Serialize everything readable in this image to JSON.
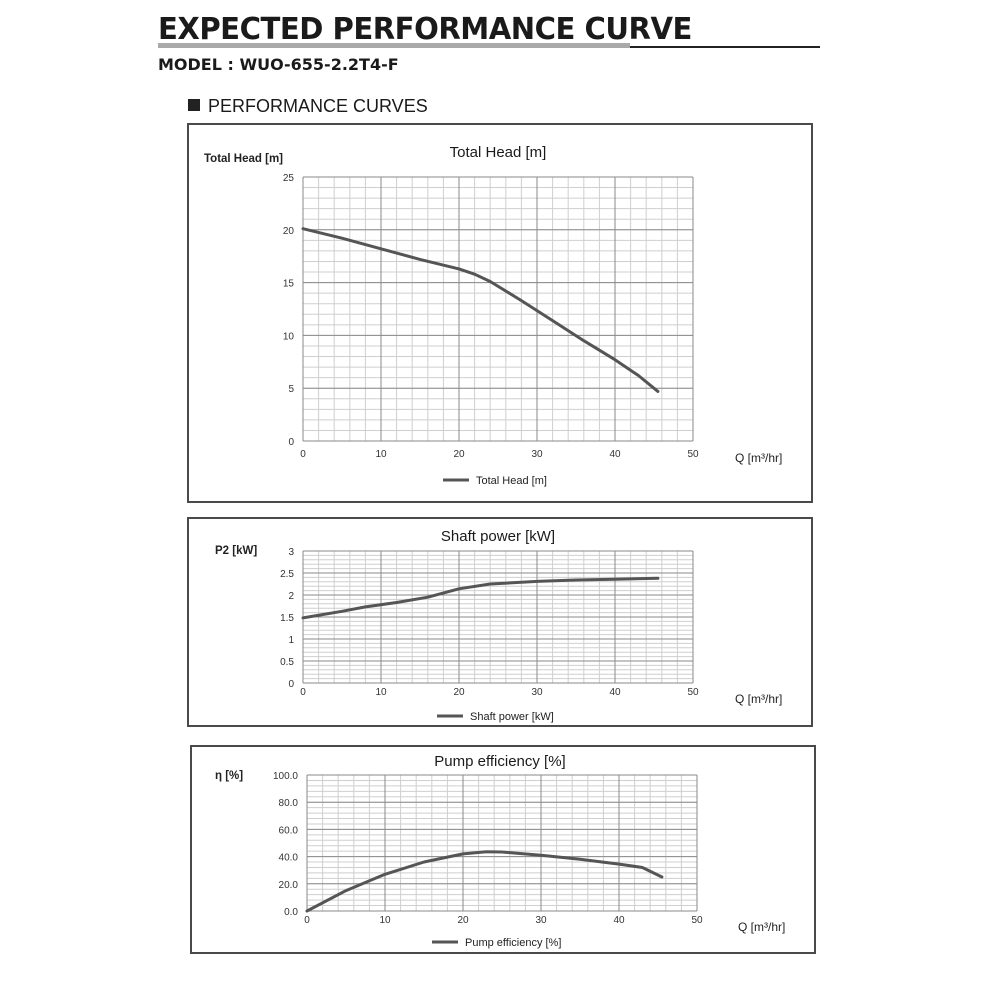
{
  "header": {
    "title": "EXPECTED PERFORMANCE CURVE",
    "model": "MODEL : WUO-655-2.2T4-F",
    "section": "PERFORMANCE CURVES"
  },
  "colors": {
    "line": "#555555",
    "grid_major": "#8a8a8a",
    "grid_minor": "#cfcfcf",
    "border": "#4a4a4a"
  },
  "chart_data": [
    {
      "type": "line",
      "title": "Total Head [m]",
      "ylabel": "Total Head [m]",
      "xlabel": "Q [m³/hr]",
      "legend": "Total Head [m]",
      "legend_placement": "bottom",
      "grid": true,
      "xlim": [
        0,
        50
      ],
      "ylim": [
        0,
        25
      ],
      "xticks": [
        "0",
        "10",
        "20",
        "30",
        "40",
        "50"
      ],
      "yticks": [
        "0",
        "5",
        "10",
        "15",
        "20",
        "25"
      ],
      "x_minor": 2,
      "y_minor": 1,
      "series": [
        {
          "name": "Total Head [m]",
          "x": [
            0,
            5,
            10,
            15,
            20,
            22,
            24,
            28,
            32,
            36,
            40,
            43,
            45.5
          ],
          "y": [
            20.1,
            19.2,
            18.2,
            17.2,
            16.3,
            15.8,
            15.1,
            13.3,
            11.4,
            9.5,
            7.7,
            6.2,
            4.7
          ]
        }
      ]
    },
    {
      "type": "line",
      "title": "Shaft power [kW]",
      "ylabel": "P2 [kW]",
      "xlabel": "Q [m³/hr]",
      "legend": "Shaft power [kW]",
      "legend_placement": "bottom",
      "grid": true,
      "xlim": [
        0,
        50
      ],
      "ylim": [
        0,
        3
      ],
      "xticks": [
        "0",
        "10",
        "20",
        "30",
        "40",
        "50"
      ],
      "yticks": [
        "0",
        "0.5",
        "1",
        "1.5",
        "2",
        "2.5",
        "3"
      ],
      "x_minor": 2,
      "y_minor": 0.1,
      "series": [
        {
          "name": "Shaft power [kW]",
          "x": [
            0,
            5,
            8,
            12,
            16,
            20,
            24,
            30,
            35,
            40,
            45.5
          ],
          "y": [
            1.48,
            1.63,
            1.73,
            1.83,
            1.95,
            2.14,
            2.25,
            2.31,
            2.34,
            2.36,
            2.38
          ]
        }
      ]
    },
    {
      "type": "line",
      "title": "Pump efficiency [%]",
      "ylabel": "η [%]",
      "xlabel": "Q [m³/hr]",
      "legend": "Pump efficiency [%]",
      "legend_placement": "bottom",
      "grid": true,
      "xlim": [
        0,
        50
      ],
      "ylim": [
        0,
        100
      ],
      "xticks": [
        "0",
        "10",
        "20",
        "30",
        "40",
        "50"
      ],
      "yticks": [
        "0.0",
        "20.0",
        "40.0",
        "60.0",
        "80.0",
        "100.0"
      ],
      "x_minor": 2,
      "y_minor": 4,
      "series": [
        {
          "name": "Pump efficiency [%]",
          "x": [
            0,
            5,
            10,
            15,
            20,
            23,
            25,
            30,
            35,
            40,
            43,
            45.5
          ],
          "y": [
            0,
            15,
            27,
            36,
            42,
            43.5,
            43.4,
            41,
            38,
            34.5,
            32,
            25
          ]
        }
      ]
    }
  ]
}
